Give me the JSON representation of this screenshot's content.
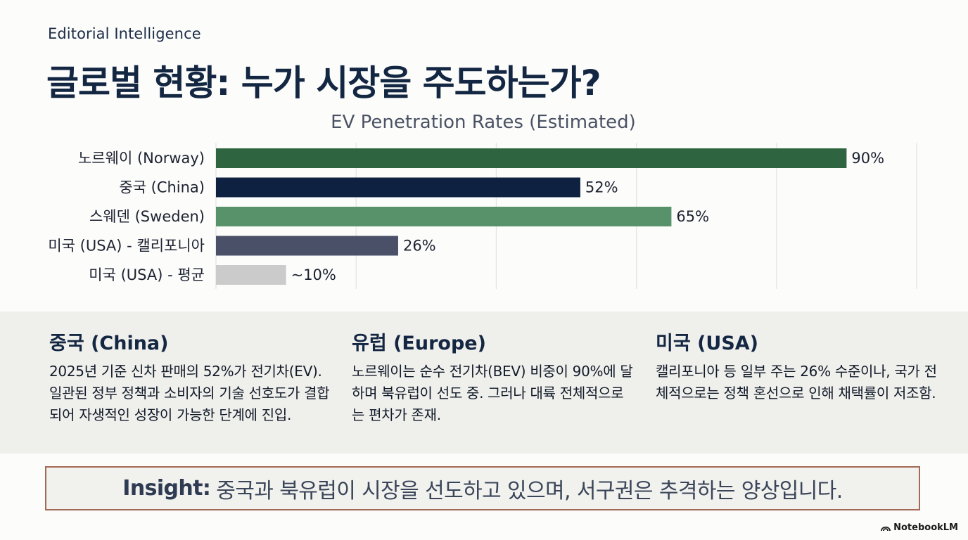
{
  "header": {
    "eyebrow": "Editorial Intelligence",
    "title": "글로벌 현황: 누가 시장을 주도하는가?"
  },
  "chart_data": {
    "type": "bar",
    "orientation": "horizontal",
    "title": "EV Penetration Rates (Estimated)",
    "xlim": [
      0,
      100
    ],
    "grid": true,
    "categories": [
      "노르웨이 (Norway)",
      "중국 (China)",
      "스웨덴 (Sweden)",
      "미국 (USA) - 캘리포니아",
      "미국 (USA) - 평균"
    ],
    "values": [
      90,
      52,
      65,
      26,
      10
    ],
    "value_labels": [
      "90%",
      "52%",
      "65%",
      "26%",
      "~10%"
    ],
    "colors": [
      "#2e6540",
      "#0e2140",
      "#57926a",
      "#4a5068",
      "#cbcbcb"
    ]
  },
  "regions": [
    {
      "heading": "중국 (China)",
      "body": "2025년 기준 신차 판매의 52%가 전기차(EV). 일관된 정부 정책과 소비자의 기술 선호도가 결합되어 자생적인 성장이 가능한 단계에 진입."
    },
    {
      "heading": "유럽 (Europe)",
      "body": "노르웨이는 순수 전기차(BEV) 비중이 90%에 달하며 북유럽이 선도 중. 그러나 대륙 전체적으로는 편차가 존재."
    },
    {
      "heading": "미국 (USA)",
      "body": "캘리포니아 등 일부 주는 26% 수준이나, 국가 전체적으로는 정책 혼선으로 인해 채택률이 저조함."
    }
  ],
  "insight": {
    "label": "Insight:",
    "text": "중국과 북유럽이 시장을 선도하고 있으며, 서구권은 추격하는 양상입니다."
  },
  "brand": {
    "name": "NotebookLM",
    "icon": "notebooklm-icon"
  }
}
